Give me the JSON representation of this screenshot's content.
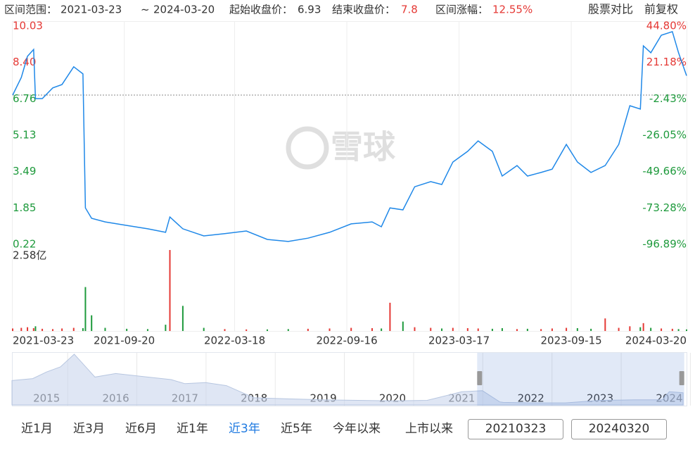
{
  "header": {
    "range_label": "区间范围：",
    "separator": "~",
    "start_label": "起始收盘价：",
    "start_price": 6.93,
    "end_label": "结束收盘价：",
    "end_price": 7.8,
    "change_label": "区间涨幅：",
    "change": "12.55%",
    "compare": "股票对比",
    "adjust": "前复权",
    "watermark": "雪球"
  },
  "chart_data": [
    {
      "type": "line",
      "color": "#1f88e8",
      "x": [
        "2021-03-23",
        "2021-04-06",
        "2021-04-16",
        "2021-04-26",
        "2021-04-29",
        "2021-05-10",
        "2021-05-27",
        "2021-06-11",
        "2021-06-30",
        "2021-07-15",
        "2021-07-19",
        "2021-07-29",
        "2021-08-20",
        "2021-09-24",
        "2021-10-28",
        "2021-11-26",
        "2021-12-03",
        "2021-12-24",
        "2022-01-27",
        "2022-03-02",
        "2022-04-06",
        "2022-05-10",
        "2022-06-13",
        "2022-07-15",
        "2022-08-19",
        "2022-09-23",
        "2022-10-27",
        "2022-11-11",
        "2022-11-25",
        "2022-12-16",
        "2023-01-04",
        "2023-01-30",
        "2023-02-17",
        "2023-03-07",
        "2023-03-31",
        "2023-04-17",
        "2023-05-10",
        "2023-05-26",
        "2023-06-19",
        "2023-07-06",
        "2023-07-28",
        "2023-08-15",
        "2023-09-07",
        "2023-09-25",
        "2023-10-17",
        "2023-11-09",
        "2023-12-01",
        "2023-12-19",
        "2024-01-05",
        "2024-01-10",
        "2024-01-22",
        "2024-02-08",
        "2024-02-26",
        "2024-03-07",
        "2024-03-20"
      ],
      "values": [
        6.93,
        7.72,
        8.67,
        8.98,
        6.77,
        6.77,
        7.25,
        7.4,
        8.2,
        7.88,
        1.86,
        1.39,
        1.23,
        1.07,
        0.92,
        0.76,
        1.45,
        0.92,
        0.6,
        0.7,
        0.82,
        0.44,
        0.35,
        0.5,
        0.76,
        1.14,
        1.23,
        1.01,
        1.86,
        1.77,
        2.81,
        3.04,
        2.91,
        3.92,
        4.4,
        4.87,
        4.4,
        3.29,
        3.76,
        3.29,
        3.45,
        3.6,
        4.71,
        3.92,
        3.45,
        3.76,
        4.71,
        6.45,
        6.3,
        9.14,
        8.83,
        9.62,
        9.78,
        8.83,
        7.8
      ],
      "xlim": [
        "2021-03-23",
        "2024-03-20"
      ],
      "xticks": [
        "2021-03-23",
        "2021-09-20",
        "2022-03-18",
        "2022-09-16",
        "2023-03-17",
        "2023-09-15",
        "2024-03-20"
      ],
      "ylim": [
        0.22,
        10.03
      ],
      "yticks": [
        10.03,
        {
          "value": 8.4,
          "label": "8.40"
        },
        6.76,
        5.13,
        3.49,
        1.85,
        0.22
      ],
      "y2lim": [
        -96.89,
        44.8
      ],
      "y2ticks": [
        {
          "value": 44.8,
          "label": "44.80%"
        },
        {
          "value": 21.18,
          "label": "21.18%"
        },
        {
          "value": -2.43,
          "label": "-2.43%"
        },
        {
          "value": -26.05,
          "label": "-26.05%"
        },
        {
          "value": -49.66,
          "label": "-49.66%"
        },
        {
          "value": -73.28,
          "label": "-73.28%"
        },
        {
          "value": -96.89,
          "label": "-96.89%"
        }
      ],
      "up_color": "#e53935",
      "down_color": "#1e9a3c",
      "grid": "x"
    },
    {
      "type": "bar",
      "up_color": "#e53935",
      "down_color": "#1e9a3c",
      "values": [
        0.08,
        0.1,
        0.12,
        0.09,
        0.15,
        0.07,
        0.06,
        0.08,
        0.1,
        0.09,
        1.4,
        0.5,
        0.1,
        0.07,
        0.06,
        0.2,
        2.58,
        0.8,
        0.1,
        0.06,
        0.05,
        0.05,
        0.06,
        0.07,
        0.08,
        0.1,
        0.09,
        0.08,
        0.9,
        0.3,
        0.12,
        0.1,
        0.08,
        0.1,
        0.09,
        0.08,
        0.07,
        0.09,
        0.06,
        0.07,
        0.06,
        0.08,
        0.1,
        0.09,
        0.07,
        0.4,
        0.1,
        0.15,
        0.12,
        0.25,
        0.1,
        0.08,
        0.07,
        0.06,
        0.05
      ],
      "ylim": [
        0,
        2.58
      ],
      "yticks": [
        {
          "value": 2.58,
          "label": "2.58亿"
        }
      ]
    },
    {
      "type": "area",
      "color": "#c9d6ec",
      "line_color": "#b7c6e0",
      "x": [
        2014.5,
        2014.8,
        2015.0,
        2015.2,
        2015.4,
        2015.5,
        2015.7,
        2016.0,
        2016.4,
        2016.8,
        2017.0,
        2017.3,
        2017.6,
        2018.0,
        2018.5,
        2019.0,
        2019.5,
        2020.0,
        2020.5,
        2021.0,
        2021.3,
        2021.55,
        2021.6,
        2022.0,
        2022.5,
        2023.0,
        2023.5,
        2023.9,
        2024.0,
        2024.2
      ],
      "values": [
        4.8,
        5.2,
        6.5,
        7.5,
        10,
        8.5,
        5.5,
        6.2,
        5.6,
        5.0,
        4.2,
        4.4,
        3.8,
        1.4,
        1.2,
        1.0,
        0.9,
        0.8,
        0.9,
        2.6,
        2.8,
        0.6,
        0.5,
        0.4,
        0.4,
        0.9,
        1.0,
        1.0,
        2.6,
        2.4
      ],
      "xlim": [
        2014.5,
        2024.25
      ],
      "ylim": [
        0,
        10
      ],
      "xticks": [
        2015,
        2016,
        2017,
        2018,
        2019,
        2020,
        2021,
        2022,
        2023,
        2024
      ]
    }
  ],
  "controls": {
    "buttons": [
      "近1月",
      "近3月",
      "近6月",
      "近1年",
      "近3年",
      "近5年",
      "今年以来",
      "上市以来"
    ],
    "active": 4,
    "start_input": "20210323",
    "end_input": "20240320"
  }
}
